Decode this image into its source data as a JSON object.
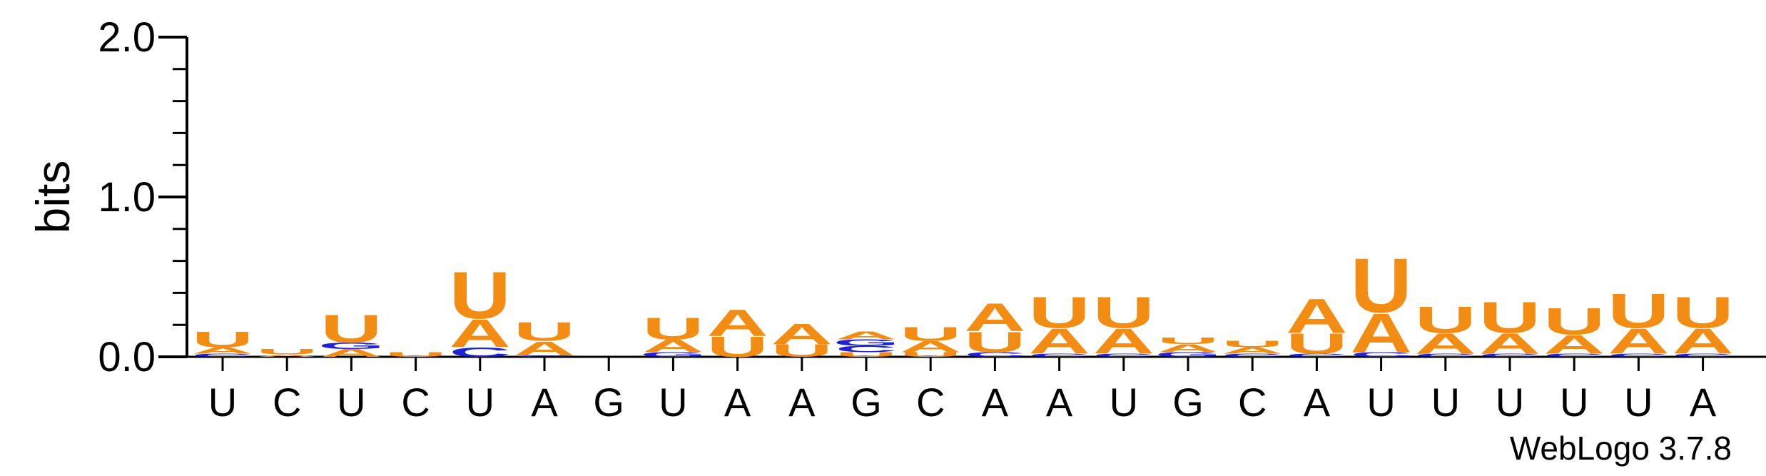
{
  "chart_data": {
    "type": "sequence-logo",
    "ylabel": "bits",
    "ylim": [
      0,
      2.0
    ],
    "yticks": [
      "0.0",
      "1.0",
      "2.0"
    ],
    "colors": {
      "A": "#f28c12",
      "U": "#f28c12",
      "C": "#1f22d6",
      "G": "#1f22d6"
    },
    "positions": [
      {
        "label": "U",
        "stack": [
          {
            "letter": "C",
            "bits": 0.02
          },
          {
            "letter": "A",
            "bits": 0.04
          },
          {
            "letter": "U",
            "bits": 0.1
          }
        ]
      },
      {
        "label": "C",
        "stack": [
          {
            "letter": "A",
            "bits": 0.015
          },
          {
            "letter": "U",
            "bits": 0.035
          }
        ]
      },
      {
        "label": "U",
        "stack": [
          {
            "letter": "A",
            "bits": 0.05
          },
          {
            "letter": "G",
            "bits": 0.04
          },
          {
            "letter": "U",
            "bits": 0.18
          }
        ]
      },
      {
        "label": "C",
        "stack": [
          {
            "letter": "U",
            "bits": 0.03
          }
        ]
      },
      {
        "label": "U",
        "stack": [
          {
            "letter": "C",
            "bits": 0.06
          },
          {
            "letter": "A",
            "bits": 0.18
          },
          {
            "letter": "U",
            "bits": 0.3
          }
        ]
      },
      {
        "label": "A",
        "stack": [
          {
            "letter": "C",
            "bits": 0.01
          },
          {
            "letter": "A",
            "bits": 0.09
          },
          {
            "letter": "U",
            "bits": 0.12
          }
        ]
      },
      {
        "label": "G",
        "stack": []
      },
      {
        "label": "U",
        "stack": [
          {
            "letter": "G",
            "bits": 0.03
          },
          {
            "letter": "A",
            "bits": 0.08
          },
          {
            "letter": "U",
            "bits": 0.14
          }
        ]
      },
      {
        "label": "A",
        "stack": [
          {
            "letter": "U",
            "bits": 0.13
          },
          {
            "letter": "A",
            "bits": 0.17
          }
        ]
      },
      {
        "label": "A",
        "stack": [
          {
            "letter": "U",
            "bits": 0.08
          },
          {
            "letter": "A",
            "bits": 0.13
          }
        ]
      },
      {
        "label": "G",
        "stack": [
          {
            "letter": "U",
            "bits": 0.03
          },
          {
            "letter": "C",
            "bits": 0.04
          },
          {
            "letter": "G",
            "bits": 0.04
          },
          {
            "letter": "A",
            "bits": 0.05
          }
        ]
      },
      {
        "label": "C",
        "stack": [
          {
            "letter": "U",
            "bits": 0.03
          },
          {
            "letter": "A",
            "bits": 0.07
          },
          {
            "letter": "U",
            "bits": 0.09
          }
        ]
      },
      {
        "label": "A",
        "stack": [
          {
            "letter": "C",
            "bits": 0.03
          },
          {
            "letter": "U",
            "bits": 0.13
          },
          {
            "letter": "A",
            "bits": 0.18
          }
        ]
      },
      {
        "label": "A",
        "stack": [
          {
            "letter": "C",
            "bits": 0.02
          },
          {
            "letter": "A",
            "bits": 0.16
          },
          {
            "letter": "U",
            "bits": 0.2
          }
        ]
      },
      {
        "label": "U",
        "stack": [
          {
            "letter": "C",
            "bits": 0.02
          },
          {
            "letter": "A",
            "bits": 0.16
          },
          {
            "letter": "U",
            "bits": 0.2
          }
        ]
      },
      {
        "label": "G",
        "stack": [
          {
            "letter": "G",
            "bits": 0.03
          },
          {
            "letter": "A",
            "bits": 0.05
          },
          {
            "letter": "U",
            "bits": 0.04
          }
        ]
      },
      {
        "label": "C",
        "stack": [
          {
            "letter": "C",
            "bits": 0.02
          },
          {
            "letter": "A",
            "bits": 0.04
          },
          {
            "letter": "U",
            "bits": 0.04
          }
        ]
      },
      {
        "label": "A",
        "stack": [
          {
            "letter": "C",
            "bits": 0.02
          },
          {
            "letter": "U",
            "bits": 0.13
          },
          {
            "letter": "A",
            "bits": 0.22
          }
        ]
      },
      {
        "label": "U",
        "stack": [
          {
            "letter": "C",
            "bits": 0.03
          },
          {
            "letter": "A",
            "bits": 0.25
          },
          {
            "letter": "U",
            "bits": 0.35
          }
        ]
      },
      {
        "label": "U",
        "stack": [
          {
            "letter": "C",
            "bits": 0.02
          },
          {
            "letter": "A",
            "bits": 0.13
          },
          {
            "letter": "U",
            "bits": 0.17
          }
        ]
      },
      {
        "label": "U",
        "stack": [
          {
            "letter": "C",
            "bits": 0.02
          },
          {
            "letter": "A",
            "bits": 0.13
          },
          {
            "letter": "U",
            "bits": 0.2
          }
        ]
      },
      {
        "label": "U",
        "stack": [
          {
            "letter": "C",
            "bits": 0.02
          },
          {
            "letter": "A",
            "bits": 0.12
          },
          {
            "letter": "U",
            "bits": 0.17
          }
        ]
      },
      {
        "label": "U",
        "stack": [
          {
            "letter": "C",
            "bits": 0.02
          },
          {
            "letter": "A",
            "bits": 0.16
          },
          {
            "letter": "U",
            "bits": 0.22
          }
        ]
      },
      {
        "label": "A",
        "stack": [
          {
            "letter": "C",
            "bits": 0.02
          },
          {
            "letter": "A",
            "bits": 0.16
          },
          {
            "letter": "U",
            "bits": 0.2
          }
        ]
      }
    ]
  },
  "credit": "WebLogo 3.7.8"
}
